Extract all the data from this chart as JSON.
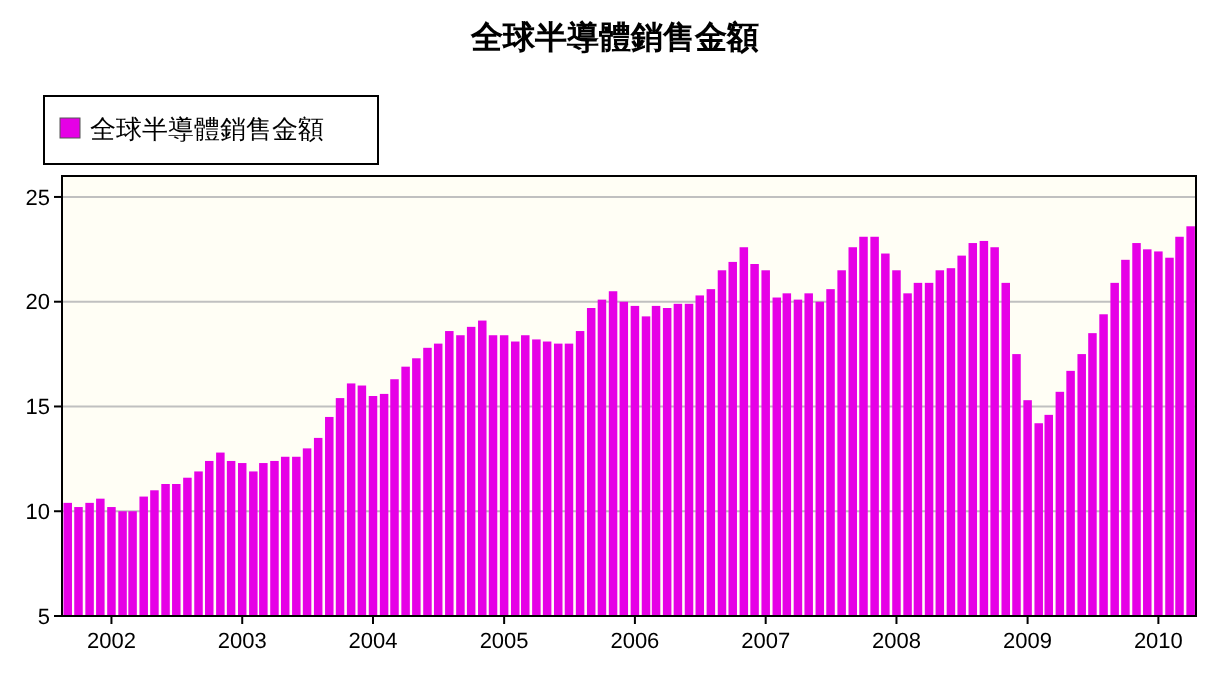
{
  "chart_data": {
    "type": "bar",
    "title": "全球半導體銷售金額",
    "x": [
      "2001-09",
      "2001-10",
      "2001-11",
      "2001-12",
      "2002-01",
      "2002-02",
      "2002-03",
      "2002-04",
      "2002-05",
      "2002-06",
      "2002-07",
      "2002-08",
      "2002-09",
      "2002-10",
      "2002-11",
      "2002-12",
      "2003-01",
      "2003-02",
      "2003-03",
      "2003-04",
      "2003-05",
      "2003-06",
      "2003-07",
      "2003-08",
      "2003-09",
      "2003-10",
      "2003-11",
      "2003-12",
      "2004-01",
      "2004-02",
      "2004-03",
      "2004-04",
      "2004-05",
      "2004-06",
      "2004-07",
      "2004-08",
      "2004-09",
      "2004-10",
      "2004-11",
      "2004-12",
      "2005-01",
      "2005-02",
      "2005-03",
      "2005-04",
      "2005-05",
      "2005-06",
      "2005-07",
      "2005-08",
      "2005-09",
      "2005-10",
      "2005-11",
      "2005-12",
      "2006-01",
      "2006-02",
      "2006-03",
      "2006-04",
      "2006-05",
      "2006-06",
      "2006-07",
      "2006-08",
      "2006-09",
      "2006-10",
      "2006-11",
      "2006-12",
      "2007-01",
      "2007-02",
      "2007-03",
      "2007-04",
      "2007-05",
      "2007-06",
      "2007-07",
      "2007-08",
      "2007-09",
      "2007-10",
      "2007-11",
      "2007-12",
      "2008-01",
      "2008-02",
      "2008-03",
      "2008-04",
      "2008-05",
      "2008-06",
      "2008-07",
      "2008-08",
      "2008-09",
      "2008-10",
      "2008-11",
      "2008-12",
      "2009-01",
      "2009-02",
      "2009-03",
      "2009-04",
      "2009-05",
      "2009-06",
      "2009-07",
      "2009-08",
      "2009-09",
      "2009-10",
      "2009-11",
      "2009-12",
      "2010-01",
      "2010-02",
      "2010-03",
      "2010-04"
    ],
    "series": [
      {
        "name": "全球半導體銷售金額",
        "color": "#e600e6",
        "values": [
          10.4,
          10.2,
          10.4,
          10.6,
          10.2,
          10.0,
          10.0,
          10.7,
          11.0,
          11.3,
          11.3,
          11.6,
          11.9,
          12.4,
          12.8,
          12.4,
          12.3,
          11.9,
          12.3,
          12.4,
          12.6,
          12.6,
          13.0,
          13.5,
          14.5,
          15.4,
          16.1,
          16.0,
          15.5,
          15.6,
          16.3,
          16.9,
          17.3,
          17.8,
          18.0,
          18.6,
          18.4,
          18.8,
          19.1,
          18.4,
          18.4,
          18.1,
          18.4,
          18.2,
          18.1,
          18.0,
          18.0,
          18.6,
          19.7,
          20.1,
          20.5,
          20.0,
          19.8,
          19.3,
          19.8,
          19.7,
          19.9,
          19.9,
          20.3,
          20.6,
          21.5,
          21.9,
          22.6,
          21.8,
          21.5,
          20.2,
          20.4,
          20.1,
          20.4,
          20.0,
          20.6,
          21.5,
          22.6,
          23.1,
          23.1,
          22.3,
          21.5,
          20.4,
          20.9,
          20.9,
          21.5,
          21.6,
          22.2,
          22.8,
          22.9,
          22.6,
          20.9,
          17.5,
          15.3,
          14.2,
          14.6,
          15.7,
          16.7,
          17.5,
          18.5,
          19.4,
          20.9,
          22.0,
          22.8,
          22.5,
          22.4,
          22.1,
          23.1,
          23.6
        ]
      }
    ],
    "xlim": [
      "2001-08-16",
      "2010-04-16"
    ],
    "xticks": [
      {
        "value": "2002-01",
        "label": "2002"
      },
      {
        "value": "2003-01",
        "label": "2003"
      },
      {
        "value": "2004-01",
        "label": "2004"
      },
      {
        "value": "2005-01",
        "label": "2005"
      },
      {
        "value": "2006-01",
        "label": "2006"
      },
      {
        "value": "2007-01",
        "label": "2007"
      },
      {
        "value": "2008-01",
        "label": "2008"
      },
      {
        "value": "2009-01",
        "label": "2009"
      },
      {
        "value": "2010-01",
        "label": "2010"
      }
    ],
    "ylim": [
      5,
      26
    ],
    "yticks": [
      5,
      10,
      15,
      20,
      25
    ],
    "grid": "y",
    "legend": "top left"
  }
}
